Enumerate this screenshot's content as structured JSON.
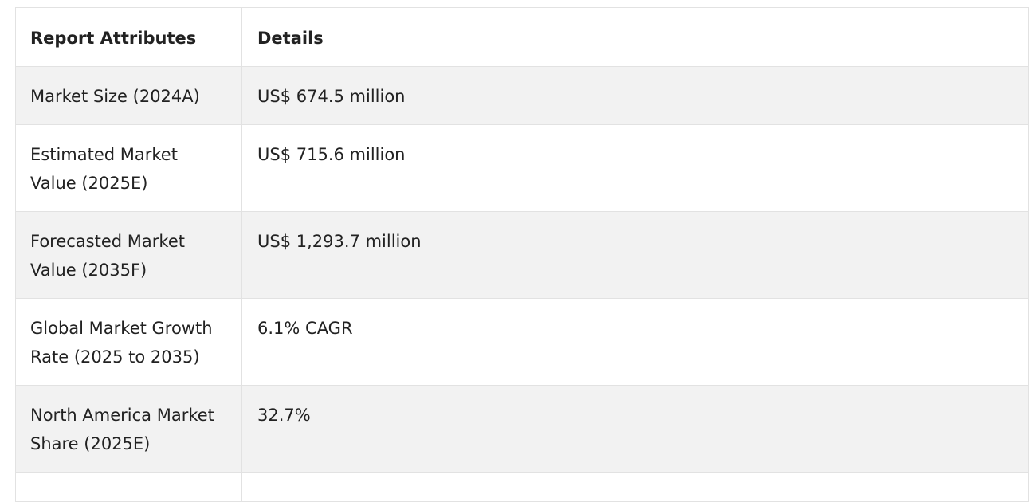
{
  "table": {
    "headers": [
      "Report Attributes",
      "Details"
    ],
    "rows": [
      [
        "Market Size (2024A)",
        "US$ 674.5 million"
      ],
      [
        "Estimated Market Value (2025E)",
        "US$ 715.6 million"
      ],
      [
        "Forecasted Market Value (2035F)",
        "US$ 1,293.7 million"
      ],
      [
        "Global Market Growth Rate (2025 to 2035)",
        "6.1% CAGR"
      ],
      [
        "North America Market Share (2025E)",
        "32.7%"
      ],
      [
        "",
        ""
      ]
    ]
  }
}
